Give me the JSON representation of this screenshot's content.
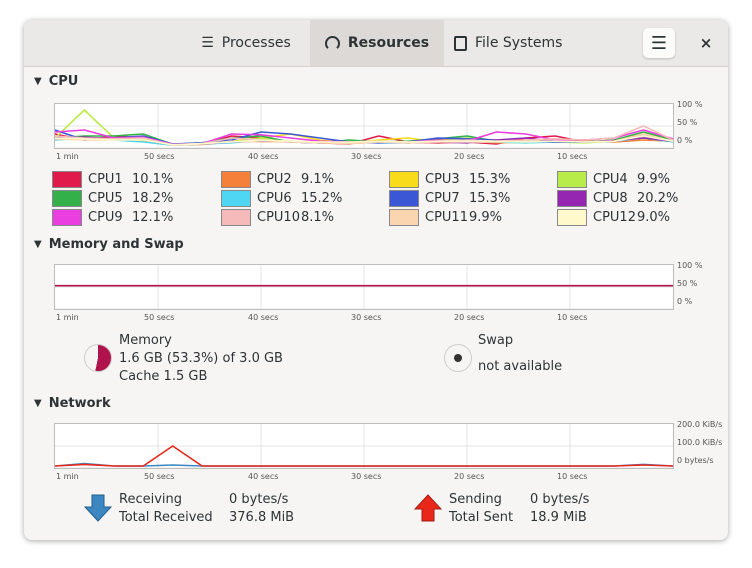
{
  "tabs": [
    {
      "label": "Processes",
      "icon": "list-icon"
    },
    {
      "label": "Resources",
      "icon": "gauge-icon"
    },
    {
      "label": "File Systems",
      "icon": "disk-icon"
    }
  ],
  "header": {
    "menu_icon": "hamburger-icon",
    "close_label": "×"
  },
  "sections": {
    "cpu": "CPU",
    "memory": "Memory and Swap",
    "network": "Network"
  },
  "time_labels": [
    "1 min",
    "50 secs",
    "40 secs",
    "30 secs",
    "20 secs",
    "10 secs"
  ],
  "pct_labels": [
    "100 %",
    "50 %",
    "0 %"
  ],
  "net_labels": [
    "200.0 KiB/s",
    "100.0 KiB/s",
    "0 bytes/s"
  ],
  "cpus": [
    {
      "name": "CPU1",
      "value": "10.1%",
      "color": "#e01b4b"
    },
    {
      "name": "CPU2",
      "value": "9.1%",
      "color": "#f5803a"
    },
    {
      "name": "CPU3",
      "value": "15.3%",
      "color": "#f8dc1c"
    },
    {
      "name": "CPU4",
      "value": "9.9%",
      "color": "#b8ec4a"
    },
    {
      "name": "CPU5",
      "value": "18.2%",
      "color": "#33b04a"
    },
    {
      "name": "CPU6",
      "value": "15.2%",
      "color": "#4fd6f2"
    },
    {
      "name": "CPU7",
      "value": "15.3%",
      "color": "#3b57d6"
    },
    {
      "name": "CPU8",
      "value": "20.2%",
      "color": "#9526b1"
    },
    {
      "name": "CPU9",
      "value": "12.1%",
      "color": "#ea3ee0"
    },
    {
      "name": "CPU10",
      "value": "8.1%",
      "color": "#f6baba"
    },
    {
      "name": "CPU11",
      "value": "9.9%",
      "color": "#fbd4b0"
    },
    {
      "name": "CPU12",
      "value": "9.0%",
      "color": "#fff9cc"
    }
  ],
  "chart_data": {
    "type": "line",
    "x_range_secs": [
      60,
      0
    ],
    "ylim": [
      0,
      100
    ],
    "cpu_series": [
      [
        30,
        15,
        25,
        20,
        2,
        5,
        25,
        20,
        10,
        8,
        5,
        25,
        10,
        8,
        10,
        5,
        20,
        25,
        10,
        12,
        20,
        15
      ],
      [
        20,
        18,
        20,
        15,
        3,
        4,
        10,
        15,
        12,
        8,
        6,
        10,
        8,
        10,
        12,
        8,
        10,
        15,
        12,
        10,
        15,
        12
      ],
      [
        15,
        20,
        15,
        12,
        2,
        6,
        12,
        20,
        30,
        15,
        8,
        15,
        20,
        10,
        15,
        10,
        8,
        12,
        10,
        15,
        30,
        15
      ],
      [
        20,
        90,
        20,
        15,
        3,
        5,
        10,
        20,
        10,
        10,
        12,
        8,
        10,
        15,
        20,
        12,
        10,
        10,
        8,
        12,
        25,
        12
      ],
      [
        20,
        25,
        25,
        30,
        4,
        8,
        20,
        25,
        10,
        8,
        15,
        10,
        12,
        18,
        25,
        12,
        12,
        10,
        10,
        15,
        35,
        15
      ],
      [
        15,
        20,
        15,
        10,
        2,
        5,
        8,
        15,
        10,
        8,
        10,
        8,
        8,
        12,
        10,
        10,
        8,
        10,
        10,
        12,
        20,
        10
      ],
      [
        40,
        15,
        20,
        25,
        5,
        8,
        15,
        35,
        30,
        20,
        10,
        8,
        10,
        20,
        18,
        15,
        12,
        10,
        10,
        12,
        25,
        12
      ],
      [
        20,
        22,
        18,
        15,
        3,
        5,
        10,
        12,
        10,
        8,
        8,
        10,
        8,
        10,
        8,
        15,
        20,
        12,
        10,
        14,
        20,
        12
      ],
      [
        35,
        40,
        20,
        22,
        4,
        6,
        30,
        28,
        20,
        12,
        10,
        12,
        10,
        15,
        12,
        35,
        30,
        15,
        15,
        20,
        40,
        18
      ],
      [
        25,
        20,
        18,
        20,
        3,
        6,
        20,
        15,
        12,
        10,
        8,
        12,
        10,
        12,
        15,
        12,
        15,
        18,
        15,
        20,
        50,
        15
      ],
      [
        18,
        15,
        15,
        18,
        2,
        5,
        12,
        10,
        10,
        8,
        6,
        10,
        8,
        10,
        10,
        10,
        12,
        12,
        10,
        12,
        30,
        12
      ],
      [
        20,
        18,
        15,
        15,
        3,
        6,
        10,
        15,
        12,
        10,
        10,
        12,
        10,
        12,
        12,
        12,
        10,
        12,
        10,
        12,
        25,
        12
      ]
    ],
    "memory_percent": 53.3,
    "swap_percent": 0,
    "network_receiving": [
      0,
      12,
      0,
      0,
      5,
      0,
      0,
      0,
      0,
      0,
      0,
      0,
      0,
      0,
      0,
      0,
      0,
      0,
      0,
      0,
      8,
      0
    ],
    "network_sending": [
      0,
      8,
      0,
      0,
      100,
      0,
      0,
      0,
      0,
      0,
      0,
      0,
      0,
      0,
      0,
      0,
      0,
      0,
      0,
      0,
      5,
      0
    ]
  },
  "memory": {
    "title": "Memory",
    "usage": "1.6 GB (53.3%) of 3.0 GB",
    "cache": "Cache 1.5 GB",
    "color": "#b0124b"
  },
  "swap": {
    "title": "Swap",
    "status": "not available"
  },
  "network": {
    "recv_label": "Receiving",
    "recv_value": "0 bytes/s",
    "total_recv_label": "Total Received",
    "total_recv_value": "376.8 MiB",
    "send_label": "Sending",
    "send_value": "0 bytes/s",
    "total_sent_label": "Total Sent",
    "total_sent_value": "18.9 MiB"
  }
}
